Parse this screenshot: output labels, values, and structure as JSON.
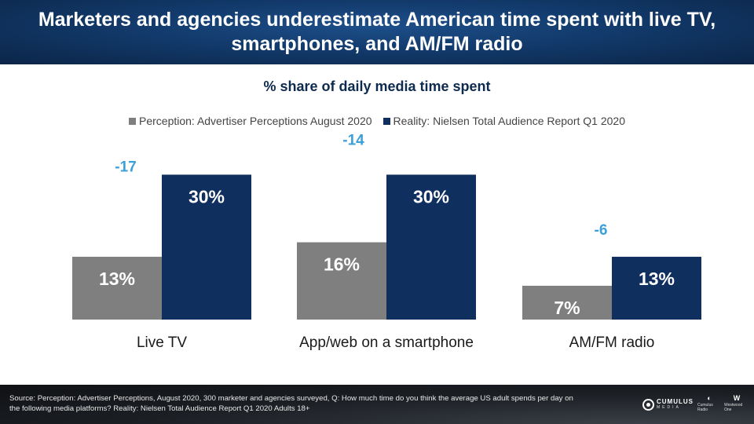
{
  "header": {
    "title": "Marketers and agencies underestimate American time spent with live TV, smartphones, and AM/FM radio"
  },
  "chart_data": {
    "type": "bar",
    "title": "% share of daily media time spent",
    "categories": [
      "Live TV",
      "App/web on a smartphone",
      "AM/FM radio"
    ],
    "series": [
      {
        "name": "Perception: Advertiser Perceptions August 2020",
        "values": [
          13,
          16,
          7
        ],
        "labels": [
          "13%",
          "16%",
          "7%"
        ],
        "color": "#7f7f7f"
      },
      {
        "name": "Reality: Nielsen Total Audience Report Q1 2020",
        "values": [
          30,
          30,
          13
        ],
        "labels": [
          "30%",
          "30%",
          "13%"
        ],
        "color": "#0f2f5f"
      }
    ],
    "differences": [
      "-17",
      "-14",
      "-6"
    ],
    "difference_color": "#3b9fd9",
    "ylim": [
      0,
      33
    ],
    "legend": "top",
    "grid": false
  },
  "footer": {
    "source": "Source: Perception: Advertiser Perceptions, August 2020, 300 marketer and agencies surveyed, Q: How much time do you think the average US adult spends per day on the following media platforms? Reality: Nielsen Total Audience Report Q1 2020 Adults 18+",
    "logos": {
      "cumulus": "CUMULUS",
      "cumulus_sub": "MEDIA",
      "radio": "Cumulus Radio",
      "westwood": "Westwood One"
    }
  }
}
